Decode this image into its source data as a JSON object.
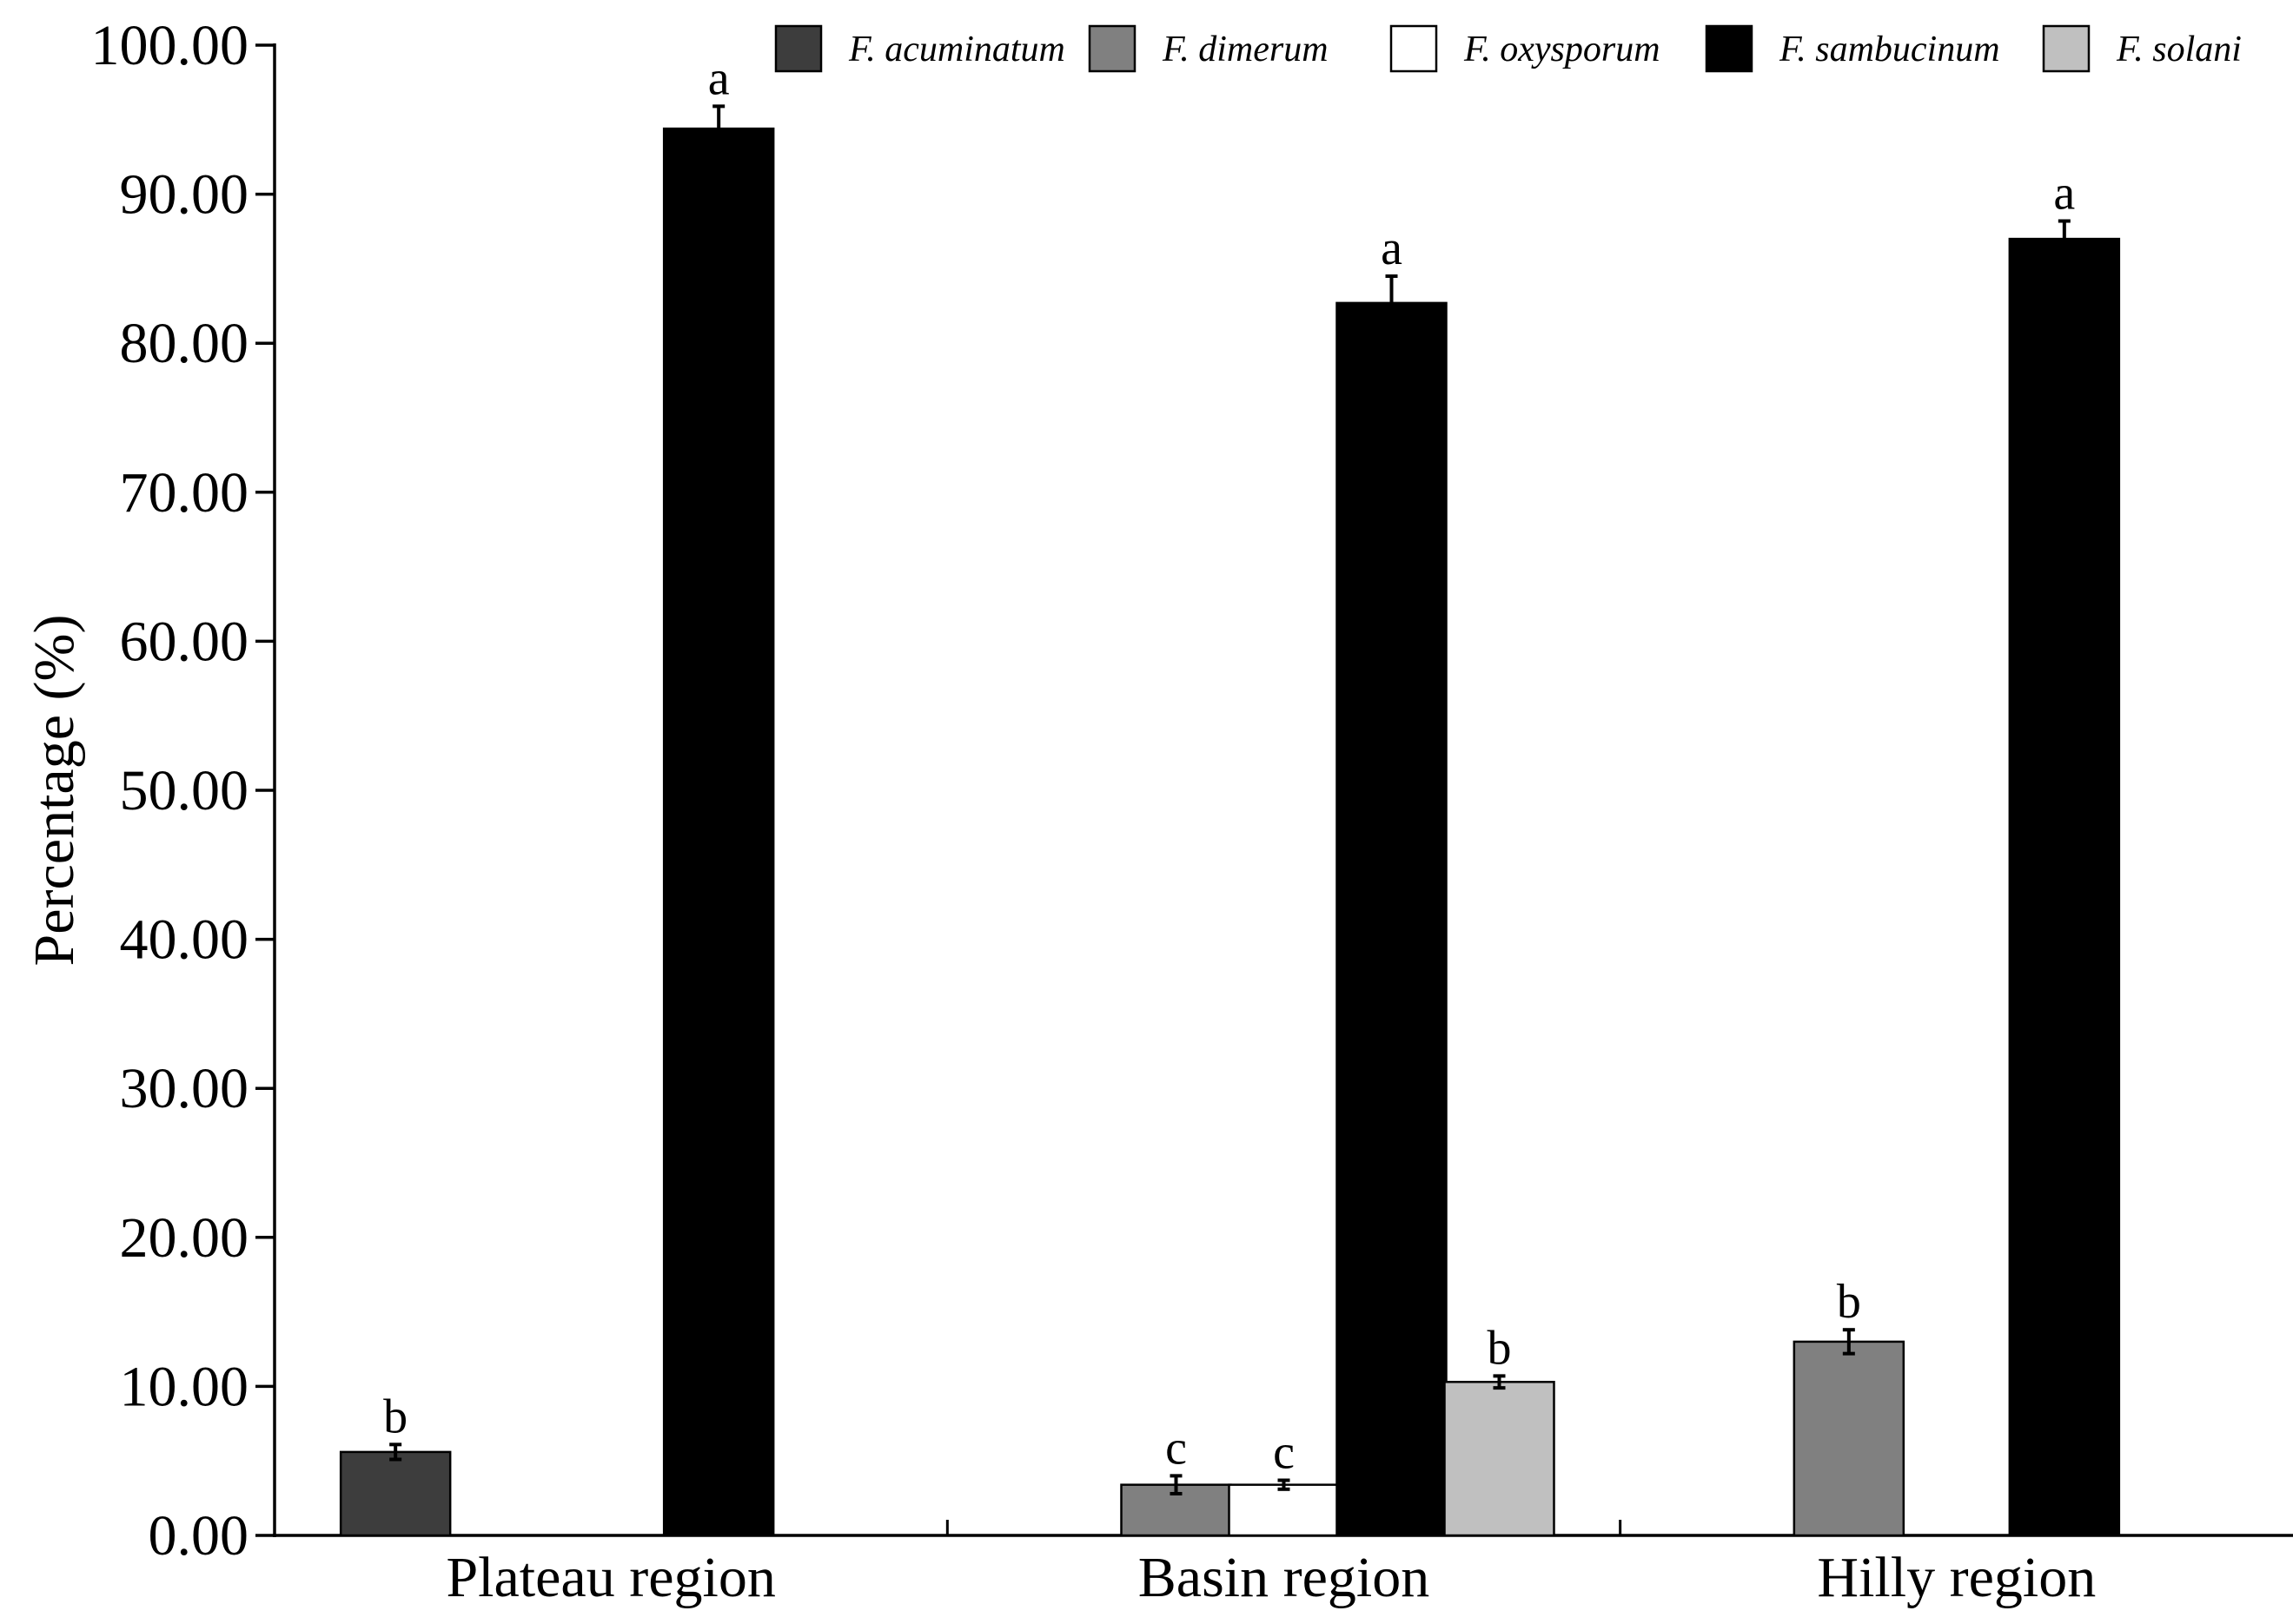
{
  "chart_data": {
    "type": "bar",
    "title": "",
    "xlabel": "",
    "ylabel": "Percentage (%)",
    "ylim": [
      0,
      100
    ],
    "yticks": [
      "0.00",
      "10.00",
      "20.00",
      "30.00",
      "40.00",
      "50.00",
      "60.00",
      "70.00",
      "80.00",
      "90.00",
      "100.00"
    ],
    "grid": false,
    "legend_position": "top-right",
    "categories": [
      "Plateau region",
      "Basin region",
      "Hilly region"
    ],
    "series": [
      {
        "name": "F. acuminatum",
        "color": "#3d3d3d",
        "values": [
          5.6,
          null,
          null
        ],
        "errors": [
          0.5,
          null,
          null
        ],
        "labels": [
          "b",
          null,
          null
        ]
      },
      {
        "name": "F. dimerum",
        "color": "#808080",
        "values": [
          null,
          3.4,
          13.0
        ],
        "errors": [
          null,
          0.6,
          0.8
        ],
        "labels": [
          null,
          "c",
          "b"
        ]
      },
      {
        "name": "F. oxysporum",
        "color": "#ffffff",
        "values": [
          null,
          3.4,
          null
        ],
        "errors": [
          null,
          0.3,
          null
        ],
        "labels": [
          null,
          "c",
          null
        ]
      },
      {
        "name": "F. sambucinum",
        "color": "#000000",
        "values": [
          94.4,
          82.7,
          87.0
        ],
        "errors": [
          1.5,
          1.8,
          1.2
        ],
        "labels": [
          "a",
          "a",
          "a"
        ]
      },
      {
        "name": "F. solani",
        "color": "#c0c0c0",
        "values": [
          null,
          10.3,
          null
        ],
        "errors": [
          null,
          0.4,
          null
        ],
        "labels": [
          null,
          "b",
          null
        ]
      }
    ]
  }
}
